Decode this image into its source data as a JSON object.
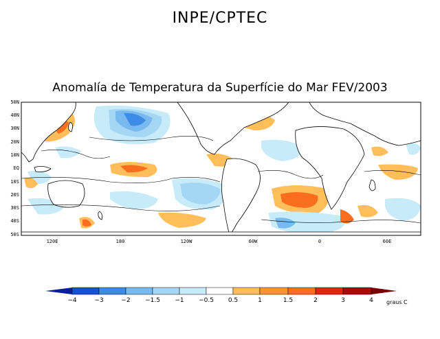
{
  "header": {
    "title": "INPE/CPTEC"
  },
  "map": {
    "title": "Anomalía de Temperatura da Superfície do Mar FEV/2003",
    "lat_labels": [
      "50N",
      "40N",
      "30N",
      "20N",
      "10N",
      "EQ",
      "10S",
      "20S",
      "30S",
      "40S",
      "50S"
    ],
    "lon_labels": [
      "120E",
      "180",
      "120W",
      "60W",
      "0",
      "60E"
    ]
  },
  "colorbar": {
    "ticks": [
      "−4",
      "−3",
      "−2",
      "−1.5",
      "−1",
      "−0.5",
      "0.5",
      "1",
      "1.5",
      "2",
      "3",
      "4"
    ],
    "unit": "graus C",
    "colors": [
      "#0a1f9c",
      "#1450d2",
      "#3c8ce6",
      "#78b9f0",
      "#a5d7f5",
      "#c8ebfa",
      "#ffffff",
      "#ffbe5a",
      "#ff9632",
      "#fa6e1e",
      "#e1280f",
      "#aa0a0a",
      "#7a0000"
    ]
  }
}
